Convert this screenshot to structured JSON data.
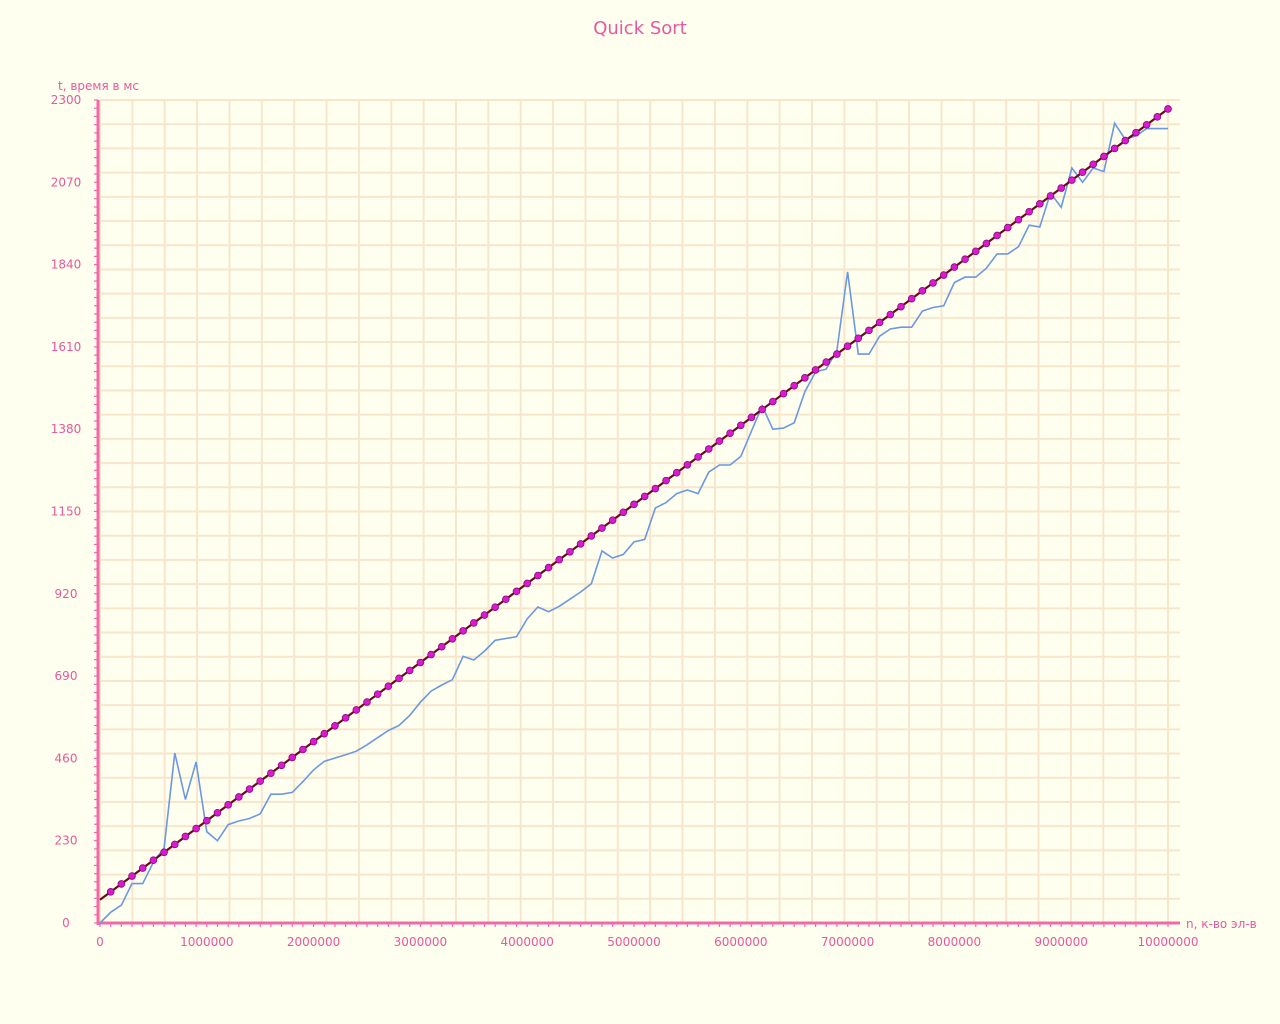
{
  "chart_data": {
    "type": "line",
    "title": "Quick Sort",
    "xlabel": "n, к-во эл-в",
    "ylabel": "t, время в мс",
    "xlim": [
      0,
      10000000
    ],
    "ylim": [
      0,
      2300
    ],
    "xticks": [
      0,
      1000000,
      2000000,
      3000000,
      4000000,
      5000000,
      6000000,
      7000000,
      8000000,
      9000000,
      10000000
    ],
    "yticks": [
      0,
      230,
      460,
      690,
      920,
      1150,
      1380,
      1610,
      1840,
      2070,
      2300
    ],
    "grid": true,
    "colors": {
      "background": "#fffff0",
      "grid": "#f7e6cc",
      "axis": "#f06aaa",
      "text": "#e8589c",
      "measured": "#6b97e3",
      "fit": "#6b0a1a",
      "markers": "#d81ad0"
    },
    "series": [
      {
        "kind": "measured",
        "x": [
          0,
          100000,
          200000,
          300000,
          400000,
          500000,
          600000,
          700000,
          800000,
          900000,
          1000000,
          1100000,
          1200000,
          1300000,
          1400000,
          1500000,
          1600000,
          1700000,
          1800000,
          1900000,
          2000000,
          2100000,
          2200000,
          2300000,
          2400000,
          2500000,
          2600000,
          2700000,
          2800000,
          2900000,
          3000000,
          3100000,
          3200000,
          3300000,
          3400000,
          3500000,
          3600000,
          3700000,
          3800000,
          3900000,
          4000000,
          4100000,
          4200000,
          4300000,
          4400000,
          4500000,
          4600000,
          4700000,
          4800000,
          4900000,
          5000000,
          5100000,
          5200000,
          5300000,
          5400000,
          5500000,
          5600000,
          5700000,
          5800000,
          5900000,
          6000000,
          6100000,
          6200000,
          6300000,
          6400000,
          6500000,
          6600000,
          6700000,
          6800000,
          6900000,
          7000000,
          7100000,
          7200000,
          7300000,
          7400000,
          7500000,
          7600000,
          7700000,
          7800000,
          7900000,
          8000000,
          8100000,
          8200000,
          8300000,
          8400000,
          8500000,
          8600000,
          8700000,
          8800000,
          8900000,
          9000000,
          9100000,
          9200000,
          9300000,
          9400000,
          9500000,
          9600000,
          9700000,
          9800000,
          9900000,
          10000000
        ],
        "y": [
          0,
          30,
          50,
          110,
          110,
          170,
          210,
          475,
          345,
          450,
          255,
          230,
          275,
          285,
          292,
          305,
          360,
          360,
          365,
          395,
          428,
          452,
          461,
          470,
          480,
          498,
          518,
          538,
          552,
          580,
          617,
          648,
          665,
          680,
          745,
          735,
          760,
          790,
          795,
          800,
          850,
          883,
          870,
          885,
          905,
          925,
          948,
          1040,
          1020,
          1030,
          1065,
          1072,
          1160,
          1175,
          1200,
          1210,
          1200,
          1260,
          1280,
          1280,
          1304,
          1375,
          1445,
          1380,
          1383,
          1398,
          1485,
          1540,
          1548,
          1600,
          1820,
          1590,
          1590,
          1640,
          1660,
          1665,
          1665,
          1710,
          1720,
          1725,
          1790,
          1805,
          1805,
          1830,
          1870,
          1870,
          1890,
          1950,
          1945,
          2040,
          2000,
          2110,
          2070,
          2110,
          2100,
          2235,
          2190,
          2200,
          2220,
          2220,
          2220
        ]
      },
      {
        "kind": "fit",
        "x": [
          0,
          10000000
        ],
        "y": [
          65,
          2275
        ]
      }
    ],
    "marker_count": 100
  }
}
